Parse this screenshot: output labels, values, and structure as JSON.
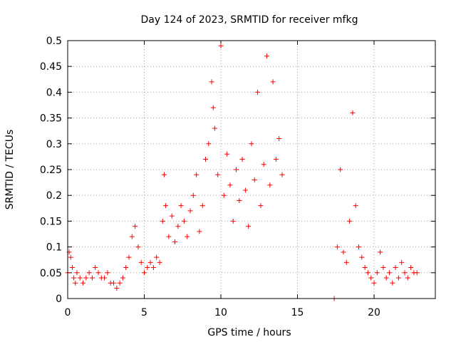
{
  "chart_data": {
    "type": "scatter",
    "title": "Day 124 of 2023, SRMTID for receiver mfkg",
    "xlabel": "GPS time / hours",
    "ylabel": "SRMTID / TECUs",
    "xlim": [
      0,
      24
    ],
    "ylim": [
      0,
      0.5
    ],
    "xticks": [
      0,
      5,
      10,
      15,
      20
    ],
    "yticks": [
      0,
      0.05,
      0.1,
      0.15,
      0.2,
      0.25,
      0.3,
      0.35,
      0.4,
      0.45,
      0.5
    ],
    "grid": true,
    "marker": "+",
    "series": [
      {
        "name": "SRMTID",
        "color": "#ff0000",
        "points": [
          [
            0.0,
            0.05
          ],
          [
            0.1,
            0.09
          ],
          [
            0.2,
            0.08
          ],
          [
            0.3,
            0.06
          ],
          [
            0.4,
            0.04
          ],
          [
            0.5,
            0.03
          ],
          [
            0.6,
            0.05
          ],
          [
            0.8,
            0.04
          ],
          [
            1.0,
            0.03
          ],
          [
            1.2,
            0.04
          ],
          [
            1.4,
            0.05
          ],
          [
            1.6,
            0.04
          ],
          [
            1.8,
            0.06
          ],
          [
            2.0,
            0.05
          ],
          [
            2.2,
            0.04
          ],
          [
            2.4,
            0.04
          ],
          [
            2.6,
            0.05
          ],
          [
            2.8,
            0.03
          ],
          [
            3.0,
            0.03
          ],
          [
            3.2,
            0.02
          ],
          [
            3.4,
            0.03
          ],
          [
            3.6,
            0.04
          ],
          [
            3.8,
            0.06
          ],
          [
            4.0,
            0.08
          ],
          [
            4.2,
            0.12
          ],
          [
            4.4,
            0.14
          ],
          [
            4.6,
            0.1
          ],
          [
            4.8,
            0.07
          ],
          [
            5.0,
            0.05
          ],
          [
            5.2,
            0.06
          ],
          [
            5.4,
            0.07
          ],
          [
            5.6,
            0.06
          ],
          [
            5.8,
            0.08
          ],
          [
            6.0,
            0.07
          ],
          [
            6.2,
            0.15
          ],
          [
            6.3,
            0.24
          ],
          [
            6.4,
            0.18
          ],
          [
            6.6,
            0.12
          ],
          [
            6.8,
            0.16
          ],
          [
            7.0,
            0.11
          ],
          [
            7.2,
            0.14
          ],
          [
            7.4,
            0.18
          ],
          [
            7.6,
            0.15
          ],
          [
            7.8,
            0.12
          ],
          [
            8.0,
            0.17
          ],
          [
            8.2,
            0.2
          ],
          [
            8.4,
            0.24
          ],
          [
            8.6,
            0.13
          ],
          [
            8.8,
            0.18
          ],
          [
            9.0,
            0.27
          ],
          [
            9.2,
            0.3
          ],
          [
            9.4,
            0.42
          ],
          [
            9.5,
            0.37
          ],
          [
            9.6,
            0.33
          ],
          [
            9.8,
            0.24
          ],
          [
            10.0,
            0.49
          ],
          [
            10.2,
            0.2
          ],
          [
            10.4,
            0.28
          ],
          [
            10.6,
            0.22
          ],
          [
            10.8,
            0.15
          ],
          [
            11.0,
            0.25
          ],
          [
            11.2,
            0.19
          ],
          [
            11.4,
            0.27
          ],
          [
            11.6,
            0.21
          ],
          [
            11.8,
            0.14
          ],
          [
            12.0,
            0.3
          ],
          [
            12.2,
            0.23
          ],
          [
            12.4,
            0.4
          ],
          [
            12.6,
            0.18
          ],
          [
            12.8,
            0.26
          ],
          [
            13.0,
            0.47
          ],
          [
            13.2,
            0.22
          ],
          [
            13.4,
            0.42
          ],
          [
            13.6,
            0.27
          ],
          [
            13.8,
            0.31
          ],
          [
            14.0,
            0.24
          ],
          [
            17.4,
            0.0
          ],
          [
            17.6,
            0.1
          ],
          [
            17.8,
            0.25
          ],
          [
            18.0,
            0.09
          ],
          [
            18.2,
            0.07
          ],
          [
            18.4,
            0.15
          ],
          [
            18.6,
            0.36
          ],
          [
            18.8,
            0.18
          ],
          [
            19.0,
            0.1
          ],
          [
            19.2,
            0.08
          ],
          [
            19.4,
            0.06
          ],
          [
            19.6,
            0.05
          ],
          [
            19.8,
            0.04
          ],
          [
            20.0,
            0.03
          ],
          [
            20.2,
            0.05
          ],
          [
            20.4,
            0.09
          ],
          [
            20.6,
            0.06
          ],
          [
            20.8,
            0.04
          ],
          [
            21.0,
            0.05
          ],
          [
            21.2,
            0.03
          ],
          [
            21.4,
            0.06
          ],
          [
            21.6,
            0.04
          ],
          [
            21.8,
            0.07
          ],
          [
            22.0,
            0.05
          ],
          [
            22.2,
            0.04
          ],
          [
            22.4,
            0.06
          ],
          [
            22.6,
            0.05
          ],
          [
            22.8,
            0.05
          ]
        ]
      }
    ]
  }
}
